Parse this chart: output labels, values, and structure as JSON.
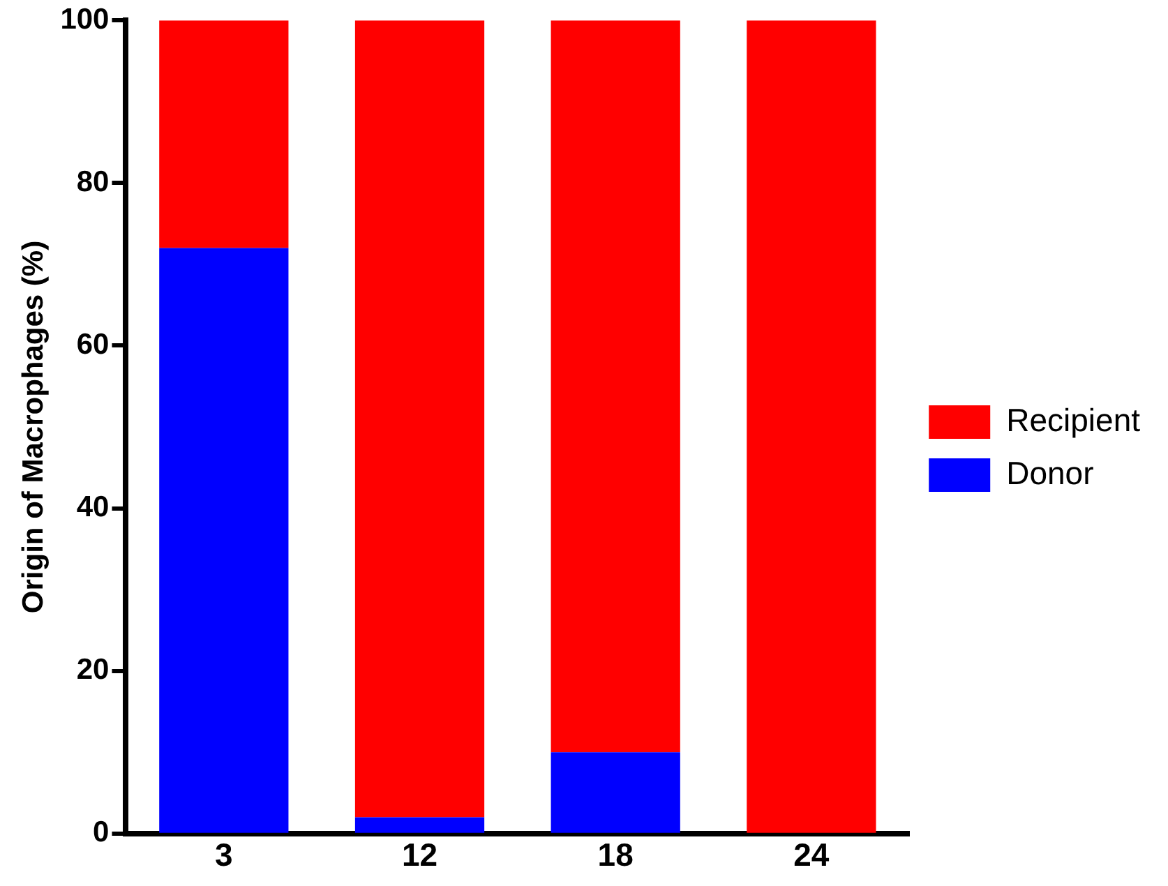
{
  "chart_data": {
    "type": "bar",
    "stacked": true,
    "ylabel": "Origin of Macrophages (%)",
    "categories": [
      "3",
      "12",
      "18",
      "24"
    ],
    "series": [
      {
        "name": "Donor",
        "color": "#0000ff",
        "values": [
          72,
          2,
          10,
          0
        ]
      },
      {
        "name": "Recipient",
        "color": "#ff0000",
        "values": [
          28,
          98,
          90,
          100
        ]
      }
    ],
    "ylim": [
      0,
      100
    ],
    "yticks": [
      0,
      20,
      40,
      60,
      80,
      100
    ],
    "grid": false,
    "legend": "right"
  }
}
